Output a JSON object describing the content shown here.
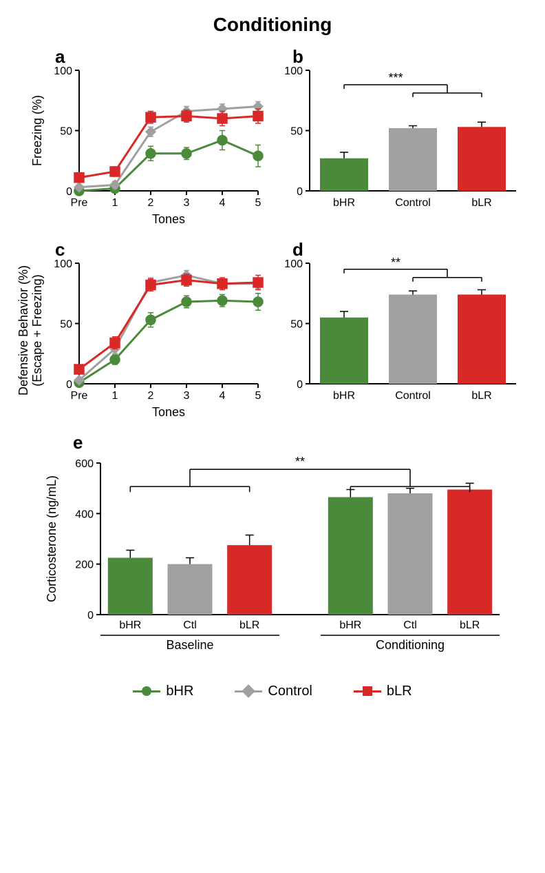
{
  "title": "Conditioning",
  "colors": {
    "bHR": "#4a8a3a",
    "Control": "#a0a0a0",
    "bLR": "#d82828",
    "axis": "#000000",
    "grid": "#ffffff",
    "background": "#ffffff",
    "error_bar": "#333333"
  },
  "panel_a": {
    "label": "a",
    "type": "line",
    "ylabel": "Freezing (%)",
    "xlabel": "Tones",
    "xticks": [
      "Pre",
      "1",
      "2",
      "3",
      "4",
      "5"
    ],
    "ylim": [
      0,
      100
    ],
    "yticks": [
      0,
      50,
      100
    ],
    "series": [
      {
        "name": "bHR",
        "color": "#4a8a3a",
        "marker": "circle",
        "values": [
          0,
          2,
          31,
          31,
          42,
          29
        ],
        "errors": [
          1,
          2,
          6,
          5,
          8,
          9
        ]
      },
      {
        "name": "Control",
        "color": "#a0a0a0",
        "marker": "diamond",
        "values": [
          3,
          5,
          49,
          66,
          68,
          70
        ],
        "errors": [
          2,
          3,
          4,
          4,
          4,
          4
        ]
      },
      {
        "name": "bLR",
        "color": "#d82828",
        "marker": "square",
        "values": [
          11,
          16,
          61,
          62,
          60,
          62
        ],
        "errors": [
          3,
          4,
          5,
          5,
          6,
          6
        ]
      }
    ],
    "line_width": 3,
    "marker_size": 7,
    "axis_fontsize": 18,
    "tick_fontsize": 16
  },
  "panel_b": {
    "label": "b",
    "type": "bar",
    "categories": [
      "bHR",
      "Control",
      "bLR"
    ],
    "values": [
      27,
      52,
      53
    ],
    "errors": [
      5,
      2,
      4
    ],
    "bar_colors": [
      "#4a8a3a",
      "#a0a0a0",
      "#d82828"
    ],
    "ylim": [
      0,
      100
    ],
    "yticks": [
      0,
      50,
      100
    ],
    "bar_width": 0.7,
    "sig_label": "***",
    "sig_from": 0,
    "sig_to": [
      1,
      2
    ],
    "sig_y": 88,
    "axis_fontsize": 18,
    "tick_fontsize": 16
  },
  "panel_c": {
    "label": "c",
    "type": "line",
    "ylabel": "Defensive Behavior (%)\n(Escape + Freezing)",
    "xlabel": "Tones",
    "xticks": [
      "Pre",
      "1",
      "2",
      "3",
      "4",
      "5"
    ],
    "ylim": [
      0,
      100
    ],
    "yticks": [
      0,
      50,
      100
    ],
    "series": [
      {
        "name": "bHR",
        "color": "#4a8a3a",
        "marker": "circle",
        "values": [
          1,
          20,
          53,
          68,
          69,
          68
        ],
        "errors": [
          1,
          4,
          6,
          5,
          5,
          7
        ]
      },
      {
        "name": "Control",
        "color": "#a0a0a0",
        "marker": "diamond",
        "values": [
          3,
          29,
          84,
          90,
          83,
          83
        ],
        "errors": [
          2,
          4,
          4,
          4,
          4,
          4
        ]
      },
      {
        "name": "bLR",
        "color": "#d82828",
        "marker": "square",
        "values": [
          12,
          34,
          82,
          86,
          83,
          84
        ],
        "errors": [
          3,
          5,
          5,
          5,
          5,
          6
        ]
      }
    ],
    "line_width": 3,
    "marker_size": 7,
    "axis_fontsize": 18,
    "tick_fontsize": 16
  },
  "panel_d": {
    "label": "d",
    "type": "bar",
    "categories": [
      "bHR",
      "Control",
      "bLR"
    ],
    "values": [
      55,
      74,
      74
    ],
    "errors": [
      5,
      3,
      4
    ],
    "bar_colors": [
      "#4a8a3a",
      "#a0a0a0",
      "#d82828"
    ],
    "ylim": [
      0,
      100
    ],
    "yticks": [
      0,
      50,
      100
    ],
    "bar_width": 0.7,
    "sig_label": "**",
    "sig_from": 0,
    "sig_to": [
      1,
      2
    ],
    "sig_y": 95,
    "axis_fontsize": 18,
    "tick_fontsize": 16
  },
  "panel_e": {
    "label": "e",
    "type": "grouped_bar",
    "ylabel": "Corticosterone (ng/mL)",
    "groups": [
      "Baseline",
      "Conditioning"
    ],
    "categories": [
      "bHR",
      "Ctl",
      "bLR"
    ],
    "values": [
      [
        225,
        200,
        275
      ],
      [
        465,
        480,
        495
      ]
    ],
    "errors": [
      [
        30,
        25,
        40
      ],
      [
        30,
        20,
        25
      ]
    ],
    "bar_colors": [
      "#4a8a3a",
      "#a0a0a0",
      "#d82828"
    ],
    "ylim": [
      0,
      600
    ],
    "yticks": [
      0,
      200,
      400,
      600
    ],
    "bar_width": 0.75,
    "sig_label": "**",
    "sig_y": 575,
    "axis_fontsize": 18,
    "tick_fontsize": 16
  },
  "legend": {
    "items": [
      {
        "label": "bHR",
        "color": "#4a8a3a",
        "marker": "circle"
      },
      {
        "label": "Control",
        "color": "#a0a0a0",
        "marker": "diamond"
      },
      {
        "label": "bLR",
        "color": "#d82828",
        "marker": "square"
      }
    ],
    "fontsize": 20
  }
}
